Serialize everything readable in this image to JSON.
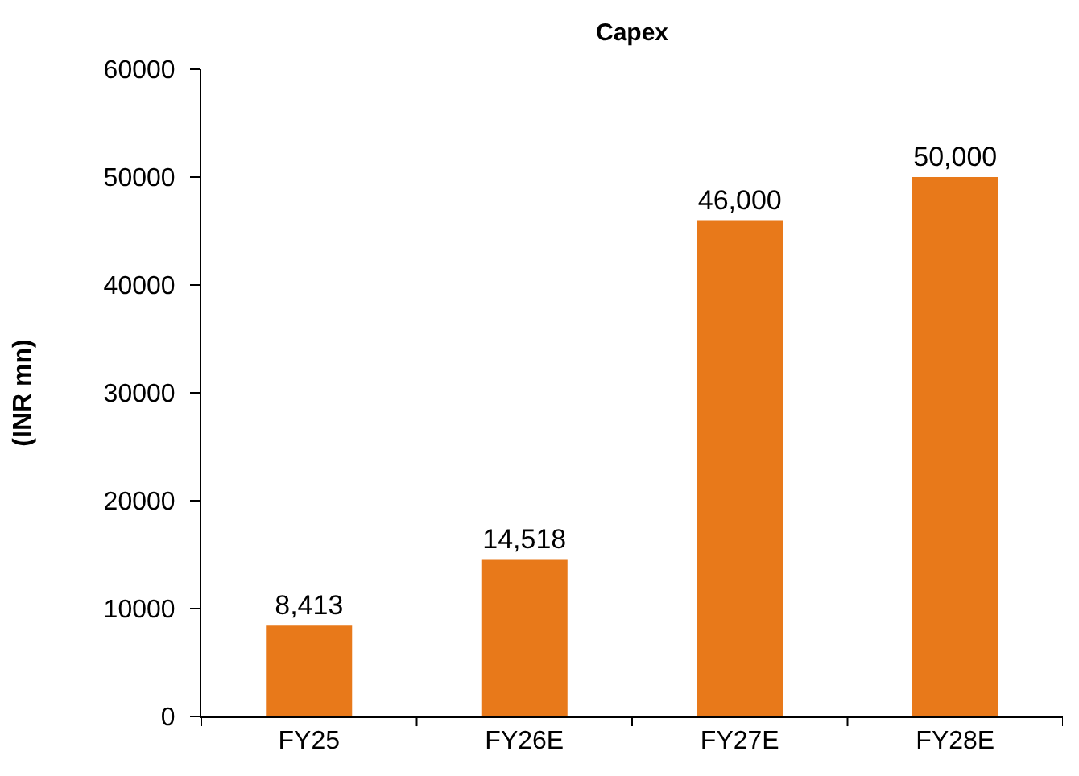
{
  "chart_data": {
    "type": "bar",
    "title": "Capex",
    "ylabel": "(INR mn)",
    "categories": [
      "FY25",
      "FY26E",
      "FY27E",
      "FY28E"
    ],
    "values": [
      8413,
      14518,
      46000,
      50000
    ],
    "value_labels": [
      "8,413",
      "14,518",
      "46,000",
      "50,000"
    ],
    "color": "#e8791a",
    "ylim": [
      0,
      60000
    ],
    "yticks": [
      0,
      10000,
      20000,
      30000,
      40000,
      50000,
      60000
    ],
    "grid": false,
    "legend": false
  }
}
